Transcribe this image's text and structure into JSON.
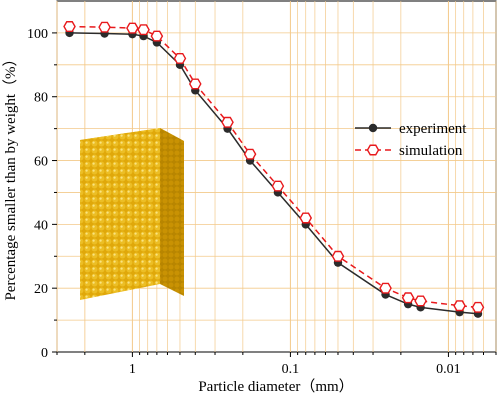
{
  "chart_data": {
    "type": "line",
    "title": "",
    "xlabel": "Particle diameter（mm）",
    "ylabel": "Percentage smaller than by weight（%）",
    "x_scale": "log",
    "x_reversed": true,
    "xlim": [
      3.0,
      0.005
    ],
    "ylim": [
      0,
      110
    ],
    "x_ticks": [
      {
        "value": 1,
        "label": "1"
      },
      {
        "value": 0.1,
        "label": "0.1"
      },
      {
        "value": 0.01,
        "label": "0.01"
      }
    ],
    "y_ticks": [
      {
        "value": 0,
        "label": "0"
      },
      {
        "value": 20,
        "label": "20"
      },
      {
        "value": 40,
        "label": "40"
      },
      {
        "value": 60,
        "label": "60"
      },
      {
        "value": 80,
        "label": "80"
      },
      {
        "value": 100,
        "label": "100"
      }
    ],
    "grid": true,
    "legend_position": "right",
    "series": [
      {
        "name": "experiment",
        "color": "#2b2b2b",
        "line_style": "solid",
        "marker": "filled-circle",
        "x": [
          2.5,
          1.5,
          1.0,
          0.85,
          0.7,
          0.5,
          0.4,
          0.25,
          0.18,
          0.12,
          0.08,
          0.05,
          0.025,
          0.018,
          0.015,
          0.0085,
          0.0065
        ],
        "y": [
          100,
          99.8,
          99.6,
          99,
          97,
          90,
          82,
          70,
          60,
          50,
          40,
          28,
          18,
          15,
          14,
          12.5,
          12
        ]
      },
      {
        "name": "simulation",
        "color": "#e8191c",
        "line_style": "dashed",
        "marker": "open-hexagon",
        "x": [
          2.5,
          1.5,
          1.0,
          0.85,
          0.7,
          0.5,
          0.4,
          0.25,
          0.18,
          0.12,
          0.08,
          0.05,
          0.025,
          0.018,
          0.015,
          0.0085,
          0.0065
        ],
        "y": [
          102,
          101.8,
          101.5,
          101,
          99,
          92,
          84,
          72,
          62,
          52,
          42,
          30,
          20,
          17,
          16,
          14.5,
          14
        ]
      }
    ]
  },
  "inset": {
    "icon": "particle-column-icon",
    "face_color": "#e0a80a",
    "side_color": "#b88500",
    "top_color": "#f2c21a"
  }
}
